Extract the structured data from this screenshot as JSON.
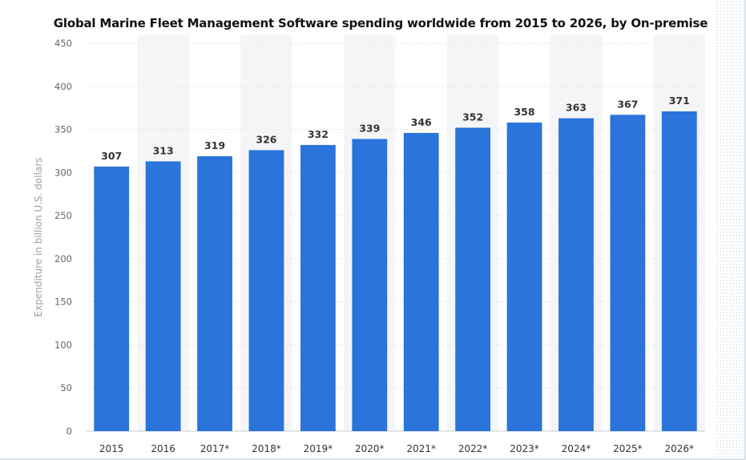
{
  "chart_data": {
    "type": "bar",
    "title": "Global Marine Fleet Management Software spending worldwide from 2015 to 2026, by On-premise",
    "ylabel": "Expenditure in billion U.S. dollars",
    "xlabel": "",
    "categories": [
      "2015",
      "2016",
      "2017*",
      "2018*",
      "2019*",
      "2020*",
      "2021*",
      "2022*",
      "2023*",
      "2024*",
      "2025*",
      "2026*"
    ],
    "values": [
      307,
      313,
      319,
      326,
      332,
      339,
      346,
      352,
      358,
      363,
      367,
      371
    ],
    "ylim": [
      0,
      450
    ],
    "yticks": [
      0,
      50,
      100,
      150,
      200,
      250,
      300,
      350,
      400,
      450
    ],
    "grid": true,
    "legend": "none",
    "bar_color": "#2a74db",
    "alt_column_shade": "#f4f5f7"
  }
}
